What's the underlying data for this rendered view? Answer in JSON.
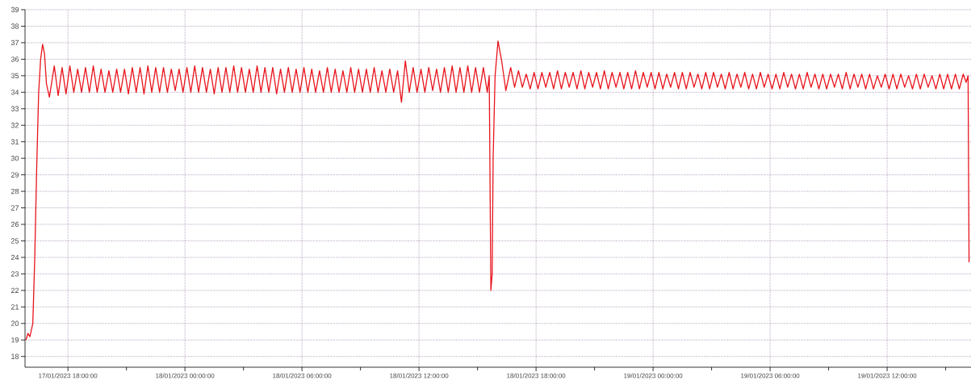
{
  "chart_data": {
    "type": "line",
    "x": [
      "2023-01-17T15:51",
      "2023-01-17T15:57",
      "2023-01-17T16:03",
      "2023-01-17T16:12",
      "2023-01-17T16:18",
      "2023-01-17T16:24",
      "2023-01-17T16:30",
      "2023-01-17T16:36",
      "2023-01-17T16:42",
      "2023-01-17T16:48",
      "2023-01-17T16:54",
      "2023-01-17T17:03",
      "2023-01-17T17:18",
      "2023-01-17T17:30",
      "2023-01-17T17:42",
      "2023-01-17T17:54",
      "2023-01-17T18:06",
      "2023-01-17T18:18",
      "2023-01-17T18:30",
      "2023-01-17T18:42",
      "2023-01-17T18:54",
      "2023-01-17T19:06",
      "2023-01-17T19:18",
      "2023-01-17T19:30",
      "2023-01-17T19:42",
      "2023-01-17T19:54",
      "2023-01-17T20:06",
      "2023-01-17T20:18",
      "2023-01-17T20:30",
      "2023-01-17T20:42",
      "2023-01-17T20:54",
      "2023-01-17T21:06",
      "2023-01-17T21:18",
      "2023-01-17T21:30",
      "2023-01-17T21:42",
      "2023-01-17T21:54",
      "2023-01-17T22:06",
      "2023-01-17T22:18",
      "2023-01-17T22:30",
      "2023-01-17T22:42",
      "2023-01-17T22:54",
      "2023-01-17T23:06",
      "2023-01-17T23:18",
      "2023-01-17T23:30",
      "2023-01-17T23:42",
      "2023-01-17T23:54",
      "2023-01-18T00:06",
      "2023-01-18T00:18",
      "2023-01-18T00:30",
      "2023-01-18T00:42",
      "2023-01-18T00:54",
      "2023-01-18T01:06",
      "2023-01-18T01:18",
      "2023-01-18T01:30",
      "2023-01-18T01:42",
      "2023-01-18T01:54",
      "2023-01-18T02:06",
      "2023-01-18T02:18",
      "2023-01-18T02:30",
      "2023-01-18T02:42",
      "2023-01-18T02:54",
      "2023-01-18T03:06",
      "2023-01-18T03:18",
      "2023-01-18T03:30",
      "2023-01-18T03:42",
      "2023-01-18T03:54",
      "2023-01-18T04:06",
      "2023-01-18T04:18",
      "2023-01-18T04:30",
      "2023-01-18T04:42",
      "2023-01-18T04:54",
      "2023-01-18T05:06",
      "2023-01-18T05:18",
      "2023-01-18T05:30",
      "2023-01-18T05:42",
      "2023-01-18T05:54",
      "2023-01-18T06:06",
      "2023-01-18T06:18",
      "2023-01-18T06:30",
      "2023-01-18T06:42",
      "2023-01-18T06:54",
      "2023-01-18T07:06",
      "2023-01-18T07:18",
      "2023-01-18T07:30",
      "2023-01-18T07:42",
      "2023-01-18T07:54",
      "2023-01-18T08:06",
      "2023-01-18T08:18",
      "2023-01-18T08:30",
      "2023-01-18T08:42",
      "2023-01-18T08:54",
      "2023-01-18T09:06",
      "2023-01-18T09:18",
      "2023-01-18T09:30",
      "2023-01-18T09:42",
      "2023-01-18T09:54",
      "2023-01-18T10:06",
      "2023-01-18T10:18",
      "2023-01-18T10:30",
      "2023-01-18T10:42",
      "2023-01-18T10:54",
      "2023-01-18T11:06",
      "2023-01-18T11:18",
      "2023-01-18T11:30",
      "2023-01-18T11:42",
      "2023-01-18T11:54",
      "2023-01-18T12:06",
      "2023-01-18T12:18",
      "2023-01-18T12:30",
      "2023-01-18T12:42",
      "2023-01-18T12:54",
      "2023-01-18T13:06",
      "2023-01-18T13:18",
      "2023-01-18T13:30",
      "2023-01-18T13:42",
      "2023-01-18T13:54",
      "2023-01-18T14:06",
      "2023-01-18T14:18",
      "2023-01-18T14:30",
      "2023-01-18T14:42",
      "2023-01-18T14:54",
      "2023-01-18T15:06",
      "2023-01-18T15:18",
      "2023-01-18T15:30",
      "2023-01-18T15:36",
      "2023-01-18T15:41",
      "2023-01-18T15:45",
      "2023-01-18T15:48",
      "2023-01-18T15:54",
      "2023-01-18T16:03",
      "2023-01-18T16:15",
      "2023-01-18T16:27",
      "2023-01-18T16:42",
      "2023-01-18T16:54",
      "2023-01-18T17:06",
      "2023-01-18T17:18",
      "2023-01-18T17:30",
      "2023-01-18T17:42",
      "2023-01-18T17:54",
      "2023-01-18T18:06",
      "2023-01-18T18:18",
      "2023-01-18T18:30",
      "2023-01-18T18:42",
      "2023-01-18T18:54",
      "2023-01-18T19:06",
      "2023-01-18T19:18",
      "2023-01-18T19:30",
      "2023-01-18T19:42",
      "2023-01-18T19:54",
      "2023-01-18T20:06",
      "2023-01-18T20:18",
      "2023-01-18T20:30",
      "2023-01-18T20:42",
      "2023-01-18T20:54",
      "2023-01-18T21:06",
      "2023-01-18T21:18",
      "2023-01-18T21:30",
      "2023-01-18T21:42",
      "2023-01-18T21:54",
      "2023-01-18T22:06",
      "2023-01-18T22:18",
      "2023-01-18T22:30",
      "2023-01-18T22:42",
      "2023-01-18T22:54",
      "2023-01-18T23:06",
      "2023-01-18T23:18",
      "2023-01-18T23:30",
      "2023-01-18T23:42",
      "2023-01-18T23:54",
      "2023-01-19T00:06",
      "2023-01-19T00:18",
      "2023-01-19T00:30",
      "2023-01-19T00:42",
      "2023-01-19T00:54",
      "2023-01-19T01:06",
      "2023-01-19T01:18",
      "2023-01-19T01:30",
      "2023-01-19T01:42",
      "2023-01-19T01:54",
      "2023-01-19T02:06",
      "2023-01-19T02:18",
      "2023-01-19T02:30",
      "2023-01-19T02:42",
      "2023-01-19T02:54",
      "2023-01-19T03:06",
      "2023-01-19T03:18",
      "2023-01-19T03:30",
      "2023-01-19T03:42",
      "2023-01-19T03:54",
      "2023-01-19T04:06",
      "2023-01-19T04:18",
      "2023-01-19T04:30",
      "2023-01-19T04:42",
      "2023-01-19T04:54",
      "2023-01-19T05:06",
      "2023-01-19T05:18",
      "2023-01-19T05:30",
      "2023-01-19T05:42",
      "2023-01-19T05:54",
      "2023-01-19T06:06",
      "2023-01-19T06:18",
      "2023-01-19T06:30",
      "2023-01-19T06:42",
      "2023-01-19T06:54",
      "2023-01-19T07:06",
      "2023-01-19T07:18",
      "2023-01-19T07:30",
      "2023-01-19T07:42",
      "2023-01-19T07:54",
      "2023-01-19T08:06",
      "2023-01-19T08:18",
      "2023-01-19T08:30",
      "2023-01-19T08:42",
      "2023-01-19T08:54",
      "2023-01-19T09:06",
      "2023-01-19T09:18",
      "2023-01-19T09:30",
      "2023-01-19T09:42",
      "2023-01-19T09:54",
      "2023-01-19T10:06",
      "2023-01-19T10:18",
      "2023-01-19T10:30",
      "2023-01-19T10:42",
      "2023-01-19T10:54",
      "2023-01-19T11:06",
      "2023-01-19T11:18",
      "2023-01-19T11:30",
      "2023-01-19T11:42",
      "2023-01-19T11:54",
      "2023-01-19T12:06",
      "2023-01-19T12:18",
      "2023-01-19T12:30",
      "2023-01-19T12:42",
      "2023-01-19T12:54",
      "2023-01-19T13:06",
      "2023-01-19T13:18",
      "2023-01-19T13:30",
      "2023-01-19T13:42",
      "2023-01-19T13:54",
      "2023-01-19T14:06",
      "2023-01-19T14:18",
      "2023-01-19T14:30",
      "2023-01-19T14:42",
      "2023-01-19T14:54",
      "2023-01-19T15:06",
      "2023-01-19T15:18",
      "2023-01-19T15:30",
      "2023-01-19T15:42",
      "2023-01-19T15:54",
      "2023-01-19T16:03",
      "2023-01-19T16:09",
      "2023-01-19T16:12"
    ],
    "values": [
      19.0,
      19.4,
      19.2,
      20.0,
      24.0,
      29.5,
      34.0,
      36.0,
      36.9,
      36.3,
      34.5,
      33.7,
      35.6,
      33.8,
      35.5,
      33.9,
      35.6,
      34.0,
      35.4,
      34.0,
      35.5,
      34.0,
      35.6,
      34.0,
      35.4,
      34.0,
      35.3,
      34.0,
      35.4,
      34.0,
      35.4,
      33.9,
      35.5,
      34.0,
      35.5,
      33.9,
      35.6,
      34.0,
      35.5,
      34.0,
      35.5,
      34.0,
      35.4,
      34.1,
      35.4,
      34.0,
      35.5,
      34.0,
      35.6,
      34.0,
      35.5,
      34.0,
      35.4,
      33.9,
      35.5,
      34.0,
      35.5,
      34.0,
      35.6,
      34.0,
      35.5,
      34.0,
      35.4,
      34.0,
      35.6,
      34.0,
      35.5,
      34.0,
      35.5,
      33.9,
      35.4,
      34.0,
      35.5,
      34.0,
      35.4,
      34.0,
      35.5,
      34.0,
      35.4,
      34.0,
      35.3,
      34.0,
      35.5,
      34.0,
      35.4,
      34.0,
      35.3,
      34.0,
      35.5,
      34.0,
      35.4,
      34.0,
      35.4,
      34.0,
      35.5,
      34.0,
      35.3,
      34.0,
      35.4,
      34.0,
      35.3,
      33.4,
      35.9,
      34.0,
      35.5,
      34.0,
      35.4,
      34.0,
      35.5,
      34.1,
      35.4,
      34.0,
      35.5,
      34.0,
      35.6,
      34.0,
      35.5,
      34.0,
      35.6,
      34.0,
      35.5,
      34.0,
      35.5,
      34.0,
      35.0,
      22.0,
      23.0,
      30.0,
      35.0,
      37.1,
      35.8,
      34.1,
      35.5,
      34.3,
      35.3,
      34.3,
      35.1,
      34.2,
      35.2,
      34.2,
      35.2,
      34.3,
      35.2,
      34.2,
      35.3,
      34.2,
      35.2,
      34.3,
      35.2,
      34.2,
      35.3,
      34.2,
      35.2,
      34.3,
      35.2,
      34.2,
      35.3,
      34.2,
      35.2,
      34.3,
      35.2,
      34.2,
      35.2,
      34.2,
      35.3,
      34.2,
      35.2,
      34.3,
      35.2,
      34.2,
      35.2,
      34.2,
      35.1,
      34.3,
      35.2,
      34.2,
      35.2,
      34.2,
      35.2,
      34.3,
      35.1,
      34.2,
      35.2,
      34.2,
      35.2,
      34.3,
      35.1,
      34.2,
      35.2,
      34.2,
      35.1,
      34.3,
      35.2,
      34.2,
      35.1,
      34.2,
      35.2,
      34.3,
      35.1,
      34.2,
      35.1,
      34.2,
      35.2,
      34.3,
      35.1,
      34.2,
      35.1,
      34.2,
      35.2,
      34.3,
      35.1,
      34.2,
      35.1,
      34.2,
      35.1,
      34.3,
      35.1,
      34.2,
      35.2,
      34.2,
      35.1,
      34.3,
      35.1,
      34.2,
      35.1,
      34.2,
      35.0,
      34.3,
      35.1,
      34.2,
      35.1,
      34.2,
      35.1,
      34.3,
      35.0,
      34.2,
      35.1,
      34.2,
      35.1,
      34.3,
      35.0,
      34.2,
      35.1,
      34.2,
      35.1,
      34.2,
      35.1,
      34.2,
      35.1,
      34.6,
      35.0,
      23.7
    ],
    "color": "#e8141c",
    "xlim": [
      "2023-01-17T15:48",
      "2023-01-19T16:18"
    ],
    "ylim": [
      17.35,
      39
    ],
    "xticks": [
      {
        "value": "2023-01-17T18:00",
        "label": "17/01/2023 18:00:00"
      },
      {
        "value": "2023-01-17T21:00",
        "label": null
      },
      {
        "value": "2023-01-18T00:00",
        "label": "18/01/2023 00:00:00"
      },
      {
        "value": "2023-01-18T03:00",
        "label": null
      },
      {
        "value": "2023-01-18T06:00",
        "label": "18/01/2023 06:00:00"
      },
      {
        "value": "2023-01-18T09:00",
        "label": null
      },
      {
        "value": "2023-01-18T12:00",
        "label": "18/01/2023 12:00:00"
      },
      {
        "value": "2023-01-18T15:00",
        "label": null
      },
      {
        "value": "2023-01-18T18:00",
        "label": "18/01/2023 18:00:00"
      },
      {
        "value": "2023-01-18T21:00",
        "label": null
      },
      {
        "value": "2023-01-19T00:00",
        "label": "19/01/2023 00:00:00"
      },
      {
        "value": "2023-01-19T03:00",
        "label": null
      },
      {
        "value": "2023-01-19T06:00",
        "label": "19/01/2023 06:00:00"
      },
      {
        "value": "2023-01-19T09:00",
        "label": null
      },
      {
        "value": "2023-01-19T12:00",
        "label": "19/01/2023 12:00:00"
      },
      {
        "value": "2023-01-19T15:00",
        "label": null
      }
    ],
    "yticks": [
      18,
      19,
      20,
      21,
      22,
      23,
      24,
      25,
      26,
      27,
      28,
      29,
      30,
      31,
      32,
      33,
      34,
      35,
      36,
      37,
      38,
      39
    ],
    "grid": true,
    "marker": "none",
    "line_style": "solid"
  }
}
